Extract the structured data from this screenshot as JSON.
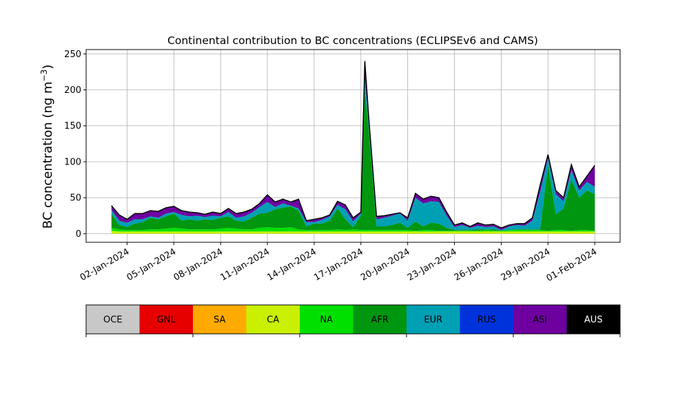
{
  "chart_data": {
    "type": "area",
    "stacked": true,
    "title": "Continental contribution to BC concentrations (ECLIPSEv6 and CAMS)",
    "ylabel": "BC concentration (ng m",
    "ylabel_sup": "−3",
    "ylabel_close": ")",
    "xlabel": "",
    "ylim": [
      -12,
      256
    ],
    "yticks": [
      0,
      50,
      100,
      150,
      200,
      250
    ],
    "x_start": "2023-12-30T09:00",
    "x_end": "2024-02-02T15:00",
    "xticks": [
      {
        "date": "2024-01-02",
        "label": "02-Jan-2024"
      },
      {
        "date": "2024-01-05",
        "label": "05-Jan-2024"
      },
      {
        "date": "2024-01-08",
        "label": "08-Jan-2024"
      },
      {
        "date": "2024-01-11",
        "label": "11-Jan-2024"
      },
      {
        "date": "2024-01-14",
        "label": "14-Jan-2024"
      },
      {
        "date": "2024-01-17",
        "label": "17-Jan-2024"
      },
      {
        "date": "2024-01-20",
        "label": "20-Jan-2024"
      },
      {
        "date": "2024-01-23",
        "label": "23-Jan-2024"
      },
      {
        "date": "2024-01-26",
        "label": "26-Jan-2024"
      },
      {
        "date": "2024-01-29",
        "label": "29-Jan-2024"
      },
      {
        "date": "2024-02-01",
        "label": "01-Feb-2024"
      }
    ],
    "grid": true,
    "series": [
      {
        "name": "OCE",
        "color": "#c8c8c8"
      },
      {
        "name": "GNL",
        "color": "#e60000"
      },
      {
        "name": "SA",
        "color": "#ffaa00"
      },
      {
        "name": "CA",
        "color": "#c8f000"
      },
      {
        "name": "NA",
        "color": "#00e000"
      },
      {
        "name": "AFR",
        "color": "#00960f"
      },
      {
        "name": "EUR",
        "color": "#00a0b4"
      },
      {
        "name": "RUS",
        "color": "#0032dc"
      },
      {
        "name": "ASI",
        "color": "#6e00a0"
      },
      {
        "name": "AUS",
        "color": "#000000"
      }
    ],
    "layers": {
      "x": [
        "2024-01-01T00:00",
        "2024-01-01T12:00",
        "2024-01-02T00:00",
        "2024-01-02T12:00",
        "2024-01-03T00:00",
        "2024-01-03T12:00",
        "2024-01-04T00:00",
        "2024-01-04T12:00",
        "2024-01-05T00:00",
        "2024-01-05T12:00",
        "2024-01-06T00:00",
        "2024-01-06T12:00",
        "2024-01-07T00:00",
        "2024-01-07T12:00",
        "2024-01-08T00:00",
        "2024-01-08T12:00",
        "2024-01-09T00:00",
        "2024-01-09T12:00",
        "2024-01-10T00:00",
        "2024-01-10T12:00",
        "2024-01-11T00:00",
        "2024-01-11T12:00",
        "2024-01-12T00:00",
        "2024-01-12T12:00",
        "2024-01-13T00:00",
        "2024-01-13T12:00",
        "2024-01-14T00:00",
        "2024-01-14T12:00",
        "2024-01-15T00:00",
        "2024-01-15T12:00",
        "2024-01-16T00:00",
        "2024-01-16T12:00",
        "2024-01-17T00:00",
        "2024-01-17T06:00",
        "2024-01-17T12:00",
        "2024-01-18T00:00",
        "2024-01-18T12:00",
        "2024-01-19T00:00",
        "2024-01-19T12:00",
        "2024-01-20T00:00",
        "2024-01-20T12:00",
        "2024-01-21T00:00",
        "2024-01-21T12:00",
        "2024-01-22T00:00",
        "2024-01-22T12:00",
        "2024-01-23T00:00",
        "2024-01-23T12:00",
        "2024-01-24T00:00",
        "2024-01-24T12:00",
        "2024-01-25T00:00",
        "2024-01-25T12:00",
        "2024-01-26T00:00",
        "2024-01-26T12:00",
        "2024-01-27T00:00",
        "2024-01-27T12:00",
        "2024-01-28T00:00",
        "2024-01-28T12:00",
        "2024-01-29T00:00",
        "2024-01-29T12:00",
        "2024-01-30T00:00",
        "2024-01-30T12:00",
        "2024-01-31T00:00",
        "2024-01-31T12:00",
        "2024-02-01T00:00"
      ],
      "CA": [
        4,
        3,
        3,
        3,
        3,
        3,
        3,
        3,
        3,
        3,
        3,
        3,
        3,
        3,
        3,
        3,
        3,
        3,
        3,
        3,
        3,
        3,
        3,
        3,
        3,
        3,
        3,
        3,
        3,
        3,
        3,
        3,
        3,
        3,
        3,
        3,
        3,
        3,
        3,
        3,
        3,
        3,
        3,
        3,
        3,
        3,
        3,
        3,
        3,
        3,
        3,
        3,
        3,
        3,
        3,
        3,
        3,
        3,
        3,
        3,
        3,
        3,
        3,
        3
      ],
      "NA": [
        8,
        6,
        5,
        5,
        5,
        6,
        6,
        7,
        8,
        7,
        6,
        6,
        6,
        6,
        7,
        8,
        7,
        6,
        6,
        8,
        9,
        8,
        8,
        9,
        6,
        5,
        5,
        5,
        5,
        6,
        5,
        6,
        5,
        5,
        5,
        5,
        5,
        5,
        5,
        5,
        4,
        5,
        5,
        4,
        4,
        4,
        4,
        4,
        4,
        5,
        4,
        4,
        5,
        5,
        5,
        5,
        5,
        4,
        5,
        5,
        4,
        5,
        5,
        4
      ],
      "AFR": [
        28,
        12,
        9,
        14,
        16,
        22,
        20,
        24,
        28,
        18,
        20,
        18,
        20,
        19,
        22,
        24,
        18,
        17,
        22,
        28,
        29,
        34,
        36,
        38,
        32,
        10,
        14,
        14,
        18,
        35,
        20,
        9,
        25,
        200,
        145,
        10,
        10,
        12,
        15,
        8,
        17,
        10,
        15,
        14,
        8,
        5,
        5,
        5,
        6,
        6,
        6,
        4,
        5,
        6,
        6,
        6,
        6,
        95,
        27,
        35,
        75,
        50,
        60,
        55
      ],
      "EUR": [
        33,
        18,
        15,
        20,
        20,
        24,
        22,
        28,
        30,
        26,
        24,
        25,
        23,
        25,
        24,
        30,
        22,
        24,
        29,
        37,
        44,
        37,
        42,
        39,
        35,
        16,
        16,
        19,
        24,
        40,
        34,
        17,
        28,
        215,
        158,
        20,
        22,
        25,
        28,
        18,
        50,
        42,
        45,
        44,
        25,
        9,
        12,
        8,
        11,
        9,
        10,
        5,
        10,
        12,
        11,
        18,
        58,
        105,
        55,
        45,
        88,
        60,
        72,
        65
      ],
      "ASI": [
        39,
        26,
        20,
        28,
        28,
        32,
        31,
        36,
        38,
        32,
        30,
        29,
        27,
        30,
        28,
        35,
        28,
        30,
        34,
        42,
        54,
        44,
        48,
        44,
        48,
        18,
        20,
        22,
        26,
        45,
        40,
        22,
        30,
        240,
        162,
        24,
        25,
        27,
        29,
        22,
        56,
        48,
        52,
        50,
        30,
        12,
        15,
        10,
        15,
        12,
        13,
        8,
        12,
        14,
        14,
        22,
        68,
        110,
        60,
        50,
        96,
        65,
        80,
        95
      ]
    }
  },
  "legend": {
    "items": [
      {
        "label": "OCE",
        "color": "#c8c8c8",
        "text_color": "#000000"
      },
      {
        "label": "GNL",
        "color": "#e60000",
        "text_color": "#000000"
      },
      {
        "label": "SA",
        "color": "#ffaa00",
        "text_color": "#000000"
      },
      {
        "label": "CA",
        "color": "#c8f000",
        "text_color": "#000000"
      },
      {
        "label": "NA",
        "color": "#00e000",
        "text_color": "#000000"
      },
      {
        "label": "AFR",
        "color": "#00960f",
        "text_color": "#000000"
      },
      {
        "label": "EUR",
        "color": "#00a0b4",
        "text_color": "#000000"
      },
      {
        "label": "RUS",
        "color": "#0032dc",
        "text_color": "#000000"
      },
      {
        "label": "ASI",
        "color": "#6e00a0",
        "text_color": "#000000"
      },
      {
        "label": "AUS",
        "color": "#000000",
        "text_color": "#ffffff"
      }
    ]
  }
}
